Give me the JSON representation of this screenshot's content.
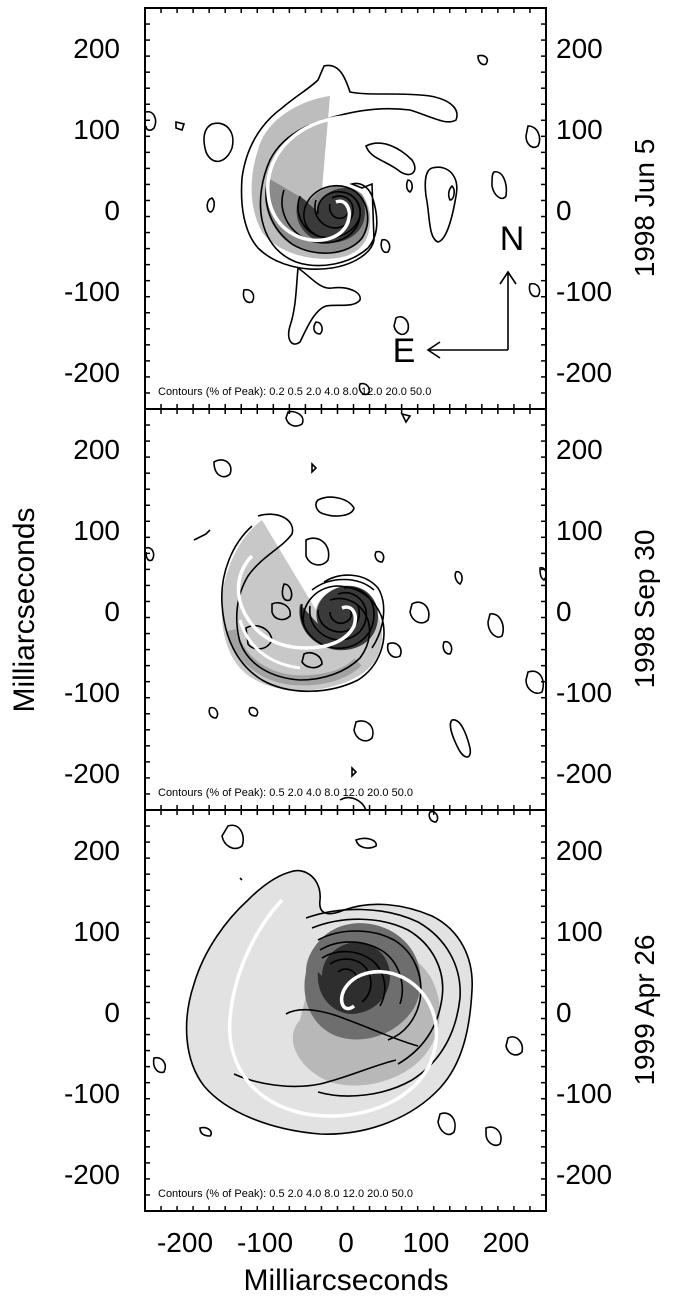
{
  "figure": {
    "xlabel": "Milliarcseconds",
    "ylabel": "Milliarcseconds",
    "compass": {
      "north": "N",
      "east": "E"
    }
  },
  "chart_data": [
    {
      "type": "contour",
      "date_label": "1998 Jun 5",
      "contour_note": "Contours (% of Peak): 0.2  0.5  2.0  4.0  8.0  12.0  20.0  50.0",
      "contour_levels_percent": [
        0.2,
        0.5,
        2.0,
        4.0,
        8.0,
        12.0,
        20.0,
        50.0
      ],
      "xlim": [
        -250,
        250
      ],
      "ylim": [
        -250,
        250
      ],
      "xticks": [
        -200,
        -100,
        0,
        100,
        200
      ],
      "yticks": [
        -200,
        -100,
        0,
        100,
        200
      ],
      "ytick_labels": [
        "-200",
        "-100",
        "0",
        "100",
        "200"
      ],
      "spiral_overlay": true
    },
    {
      "type": "contour",
      "date_label": "1998 Sep 30",
      "contour_note": "Contours (% of Peak): 0.5  2.0  4.0  8.0 12.0  20.0  50.0",
      "contour_levels_percent": [
        0.5,
        2.0,
        4.0,
        8.0,
        12.0,
        20.0,
        50.0
      ],
      "xlim": [
        -250,
        250
      ],
      "ylim": [
        -250,
        250
      ],
      "xticks": [
        -200,
        -100,
        0,
        100,
        200
      ],
      "yticks": [
        -200,
        -100,
        0,
        100,
        200
      ],
      "ytick_labels": [
        "-200",
        "-100",
        "0",
        "100",
        "200"
      ],
      "spiral_overlay": true
    },
    {
      "type": "contour",
      "date_label": "1999 Apr 26",
      "contour_note": "Contours (% of Peak): 0.5  2.0  4.0  8.0  12.0  20.0  50.0",
      "contour_levels_percent": [
        0.5,
        2.0,
        4.0,
        8.0,
        12.0,
        20.0,
        50.0
      ],
      "xlim": [
        -250,
        250
      ],
      "ylim": [
        -250,
        250
      ],
      "xticks": [
        -200,
        -100,
        0,
        100,
        200
      ],
      "xtick_labels": [
        "-200",
        "-100",
        "0",
        "100",
        "200"
      ],
      "yticks": [
        -200,
        -100,
        0,
        100,
        200
      ],
      "ytick_labels": [
        "-200",
        "-100",
        "0",
        "100",
        "200"
      ],
      "spiral_overlay": true
    }
  ]
}
